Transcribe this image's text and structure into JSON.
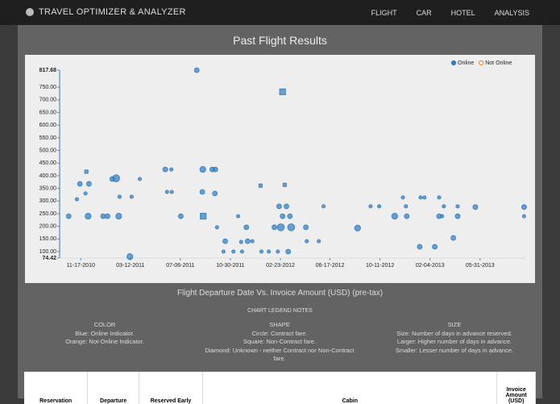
{
  "nav": {
    "brand": "TRAVEL OPTIMIZER & ANALYZER",
    "items": [
      "FLIGHT",
      "CAR",
      "HOTEL",
      "ANALYSIS"
    ]
  },
  "page_title": "Past Flight Results",
  "chart_data": {
    "type": "scatter",
    "caption": "Flight Departure Date Vs. Invoice Amount (USD) (pre-tax)",
    "xlim": [
      "2010-09-29",
      "2013-09-13"
    ],
    "xticks": [
      {
        "value": "2010-11-17",
        "label": "11-17-2010"
      },
      {
        "value": "2011-03-12",
        "label": "03-12-2011"
      },
      {
        "value": "2011-07-06",
        "label": "07-06-2011"
      },
      {
        "value": "2011-10-30",
        "label": "10-30-2011"
      },
      {
        "value": "2012-02-23",
        "label": "02-23-2012"
      },
      {
        "value": "2012-06-17",
        "label": "06-17-2012"
      },
      {
        "value": "2012-10-11",
        "label": "10-11-2012"
      },
      {
        "value": "2013-02-04",
        "label": "02-04-2013"
      },
      {
        "value": "2013-05-31",
        "label": "05-31-2013"
      }
    ],
    "ylim": [
      74.42,
      817.68
    ],
    "yticks": [
      74.42,
      {
        "value": 100,
        "label": "100.00"
      },
      {
        "value": 150,
        "label": "150.00"
      },
      {
        "value": 200,
        "label": "200.00"
      },
      {
        "value": 250,
        "label": "250.00"
      },
      {
        "value": 300,
        "label": "300.00"
      },
      {
        "value": 350,
        "label": "350.00"
      },
      {
        "value": 400,
        "label": "400.00"
      },
      {
        "value": 450,
        "label": "450.00"
      },
      {
        "value": 500,
        "label": "500.00"
      },
      {
        "value": 550,
        "label": "550.00"
      },
      {
        "value": 600,
        "label": "600.00"
      },
      {
        "value": 650,
        "label": "650.00"
      },
      {
        "value": 700,
        "label": "700.00"
      },
      {
        "value": 750,
        "label": "750.00"
      },
      817.68
    ],
    "legend": "upper right",
    "series": [
      {
        "name": "Online",
        "color": "#2f7cc0",
        "x": [
          "2010-10-20",
          "2010-11-08",
          "2010-11-15",
          "2010-11-30",
          "2010-11-28",
          "2010-12-04",
          "2010-12-06",
          "2011-01-08",
          "2011-01-18",
          "2011-01-29",
          "2011-02-07",
          "2011-02-13",
          "2011-02-15",
          "2011-03-11",
          "2011-03-15",
          "2011-04-03",
          "2011-06-01",
          "2011-06-15",
          "2011-06-05",
          "2011-06-16",
          "2011-07-07",
          "2011-08-13",
          "2011-08-27",
          "2011-09-18",
          "2011-09-25",
          "2011-08-28",
          "2011-08-26",
          "2011-09-24",
          "2011-09-29",
          "2011-10-18",
          "2011-10-14",
          "2011-11-06",
          "2011-11-17",
          "2011-11-24",
          "2011-11-26",
          "2011-12-06",
          "2011-12-09",
          "2011-12-20",
          "2012-01-08",
          "2012-01-10",
          "2012-01-27",
          "2012-02-09",
          "2012-02-17",
          "2012-02-28",
          "2012-03-04",
          "2012-02-20",
          "2012-02-28",
          "2012-02-24",
          "2012-03-19",
          "2012-03-08",
          "2012-03-16",
          "2012-03-12",
          "2012-04-22",
          "2012-04-24",
          "2012-05-22",
          "2012-06-02",
          "2012-08-20",
          "2012-09-19",
          "2012-10-09",
          "2012-11-14",
          "2012-12-03",
          "2012-12-10",
          "2012-12-12",
          "2013-01-13",
          "2013-01-22",
          "2013-01-11",
          "2013-02-25",
          "2013-02-25",
          "2013-03-04",
          "2013-03-08",
          "2013-02-15",
          "2013-03-30",
          "2013-04-09",
          "2013-04-09",
          "2013-05-20",
          "2013-09-10",
          "2013-09-10"
        ],
        "values": [
          240,
          307,
          368,
          416,
          330,
          240,
          368,
          240,
          240,
          387,
          390,
          240,
          317,
          80,
          317,
          387,
          425,
          425,
          336,
          336,
          240,
          817.68,
          425,
          425,
          425,
          240,
          336,
          330,
          196,
          141,
          100,
          100,
          240,
          138,
          100,
          196,
          141,
          141,
          361,
          100,
          100,
          196,
          100,
          732,
          364,
          279,
          240,
          196,
          196,
          279,
          240,
          100,
          196,
          141,
          141,
          279,
          193,
          279,
          279,
          240,
          314,
          279,
          240,
          314,
          314,
          119,
          314,
          240,
          240,
          279,
          119,
          154,
          279,
          240,
          276,
          276,
          240
        ],
        "sizes": [
          14,
          7,
          14,
          7,
          7,
          21,
          14,
          14,
          14,
          14,
          30,
          21,
          7,
          21,
          7,
          7,
          14,
          7,
          7,
          7,
          14,
          14,
          21,
          14,
          14,
          21,
          14,
          14,
          7,
          14,
          7,
          7,
          7,
          7,
          7,
          14,
          14,
          7,
          7,
          7,
          7,
          14,
          7,
          21,
          7,
          14,
          14,
          30,
          30,
          14,
          14,
          14,
          14,
          7,
          7,
          7,
          21,
          7,
          7,
          21,
          7,
          7,
          14,
          7,
          7,
          14,
          7,
          14,
          7,
          7,
          14,
          14,
          7,
          14,
          14,
          14,
          7
        ],
        "shapes": [
          "circle",
          "circle",
          "circle",
          "square",
          "circle",
          "circle",
          "circle",
          "circle",
          "circle",
          "circle",
          "circle",
          "circle",
          "circle",
          "circle",
          "circle",
          "circle",
          "circle",
          "circle",
          "circle",
          "circle",
          "circle",
          "circle",
          "circle",
          "circle",
          "circle",
          "square",
          "circle",
          "circle",
          "circle",
          "circle",
          "circle",
          "circle",
          "circle",
          "circle",
          "circle",
          "circle",
          "circle",
          "circle",
          "square",
          "circle",
          "circle",
          "circle",
          "circle",
          "square",
          "square",
          "circle",
          "circle",
          "circle",
          "circle",
          "circle",
          "circle",
          "circle",
          "circle",
          "circle",
          "circle",
          "circle",
          "circle",
          "circle",
          "circle",
          "circle",
          "circle",
          "circle",
          "circle",
          "circle",
          "circle",
          "circle",
          "circle",
          "circle",
          "circle",
          "circle",
          "circle",
          "circle",
          "circle",
          "circle",
          "circle",
          "circle",
          "circle"
        ]
      },
      {
        "name": "Not Online",
        "color": "#e8892b",
        "x": [],
        "values": [],
        "sizes": [],
        "shapes": []
      }
    ]
  },
  "notes": {
    "title": "CHART LEGEND NOTES",
    "columns": [
      {
        "heading": "COLOR",
        "lines": [
          "Blue: Online Indicator.",
          "Orange: Not-Online Indicator."
        ]
      },
      {
        "heading": "SHAPE",
        "lines": [
          "Circle: Contract fare.",
          "Square: Non-Contract fare.",
          "Diamond: Unknown - neither Contract nor Non-Contract fare."
        ]
      },
      {
        "heading": "SIZE",
        "lines": [
          "Size: Number of days in advance reserved.",
          "Larger: Higher number of days in advance.",
          "Smaller: Lesser number of days in advance."
        ]
      }
    ]
  },
  "table": {
    "headers": [
      "Reservation",
      "Departure",
      "Reserved Early",
      "Cabin",
      "Invoice Amount (USD)"
    ]
  }
}
